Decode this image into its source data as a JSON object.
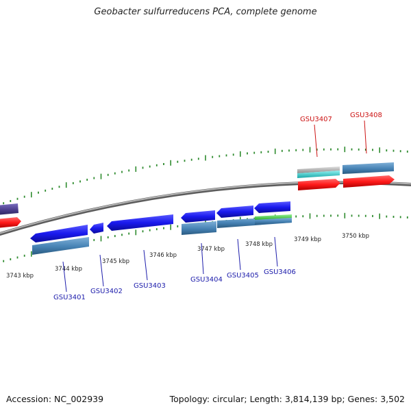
{
  "title": "Geobacter sulfurreducens PCA, complete genome",
  "footer": {
    "accession": "Accession: NC_002939",
    "summary": "Topology: circular; Length: 3,814,139 bp; Genes: 3,502"
  },
  "colors": {
    "backbone": "#8a8a8a",
    "tick": "#2e8b2e",
    "gene_forward": "#1a1aee",
    "gene_cds": "#4682b4",
    "gene_rna": "#ff1a1a",
    "gene_reverse_muted": "#4b3e8c",
    "gene_green": "#44cc44",
    "gene_cyan": "#22d3d3",
    "gene_grey": "#a0a0a0",
    "label_blue": "#1a1aaa",
    "label_red": "#cc1111"
  },
  "scale_labels": [
    "3743 kbp",
    "3744 kbp",
    "3745 kbp",
    "3746 kbp",
    "3747 kbp",
    "3748 kbp",
    "3749 kbp",
    "3750 kbp"
  ],
  "gene_labels": [
    {
      "name": "GSU3401",
      "strand": "minus"
    },
    {
      "name": "GSU3402",
      "strand": "minus"
    },
    {
      "name": "GSU3403",
      "strand": "minus"
    },
    {
      "name": "GSU3404",
      "strand": "minus"
    },
    {
      "name": "GSU3405",
      "strand": "minus"
    },
    {
      "name": "GSU3406",
      "strand": "minus"
    },
    {
      "name": "GSU3407",
      "strand": "plus"
    },
    {
      "name": "GSU3408",
      "strand": "plus"
    }
  ]
}
